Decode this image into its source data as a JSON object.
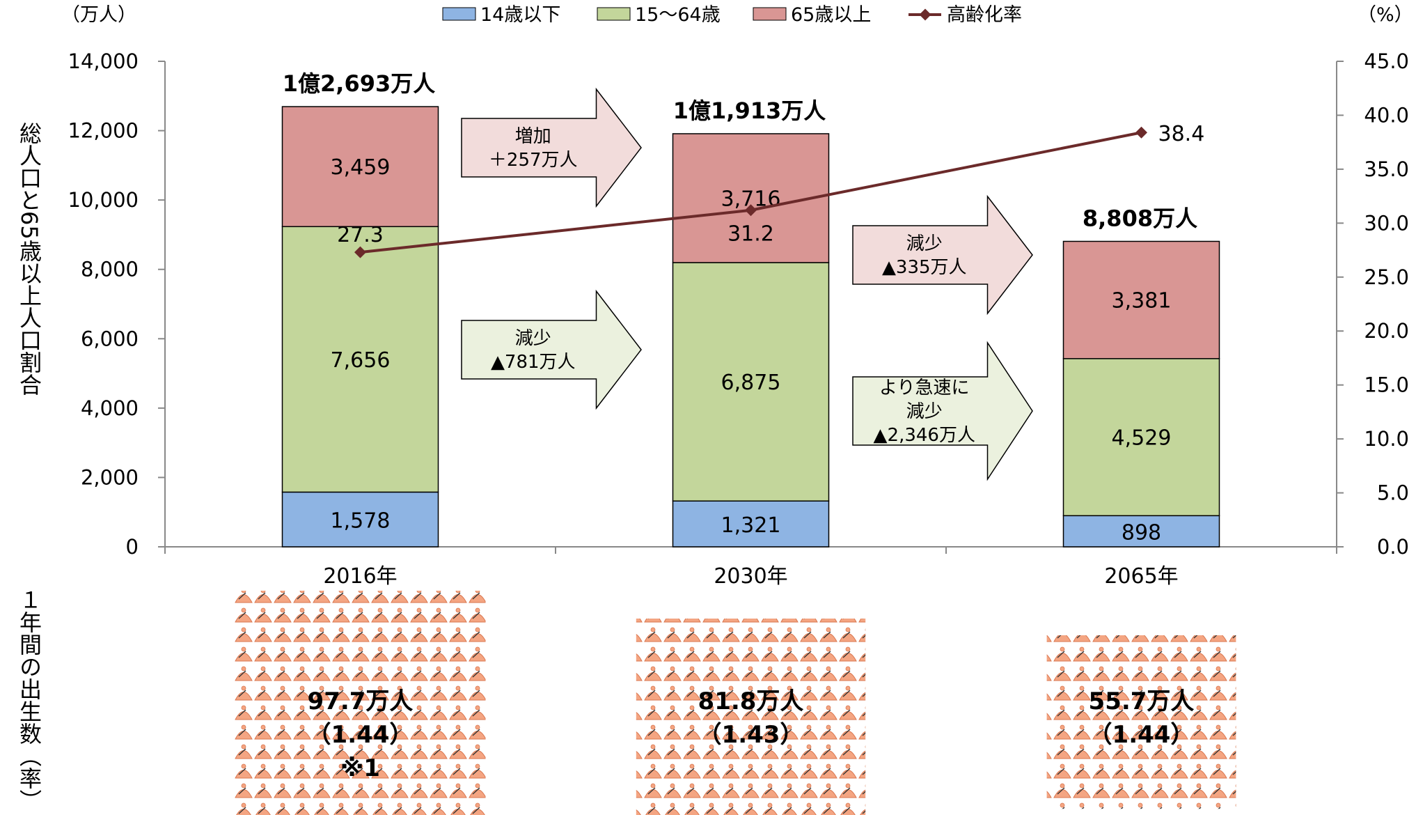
{
  "chart_data": {
    "type": "bar",
    "stacked": true,
    "categories": [
      "2016年",
      "2030年",
      "2065年"
    ],
    "series": [
      {
        "name": "14歳以下",
        "values": [
          1578,
          1321,
          898
        ],
        "color": "#8EB4E3"
      },
      {
        "name": "15〜64歳",
        "values": [
          7656,
          6875,
          4529
        ],
        "color": "#C3D69B"
      },
      {
        "name": "65歳以上",
        "values": [
          3459,
          3716,
          3381
        ],
        "color": "#D99694"
      }
    ],
    "segment_labels": [
      [
        "1,578",
        "7,656",
        "3,459"
      ],
      [
        "1,321",
        "6,875",
        "3,716"
      ],
      [
        "898",
        "4,529",
        "3,381"
      ]
    ],
    "totals": [
      "1億2,693万人",
      "1億1,913万人",
      "8,808万人"
    ],
    "line": {
      "name": "高齢化率",
      "values": [
        27.3,
        31.2,
        38.4
      ],
      "labels": [
        "27.3",
        "31.2",
        "38.4"
      ],
      "color": "#6B2A2A"
    },
    "y_left": {
      "unit": "（万人）",
      "ylim": [
        0,
        14000
      ],
      "ticks": [
        "0",
        "2,000",
        "4,000",
        "6,000",
        "8,000",
        "10,000",
        "12,000",
        "14,000"
      ],
      "label": "総人口と65歳以上人口割合"
    },
    "y_right": {
      "unit": "（%）",
      "ylim": [
        0,
        45
      ],
      "ticks": [
        "0.0",
        "5.0",
        "10.0",
        "15.0",
        "20.0",
        "25.0",
        "30.0",
        "35.0",
        "40.0",
        "45.0"
      ]
    },
    "legend_position": "top",
    "grid": false
  },
  "arrows": [
    {
      "lines": [
        "増加",
        "＋257万人"
      ],
      "color": "#F2DCDB"
    },
    {
      "lines": [
        "減少",
        "▲781万人"
      ],
      "color": "#EBF1DE"
    },
    {
      "lines": [
        "減少",
        "▲335万人"
      ],
      "color": "#F2DCDB"
    },
    {
      "lines": [
        "より急速に",
        "減少",
        "▲2,346万人"
      ],
      "color": "#EBF1DE"
    }
  ],
  "births": {
    "side_label": "１年間の出生数（率）",
    "items": [
      {
        "lines": [
          "97.7万人",
          "（1.44）",
          "※1"
        ],
        "amount": 97.7
      },
      {
        "lines": [
          "81.8万人",
          "（1.43）"
        ],
        "amount": 81.8
      },
      {
        "lines": [
          "55.7万人",
          "（1.44）"
        ],
        "amount": 55.7
      }
    ]
  }
}
